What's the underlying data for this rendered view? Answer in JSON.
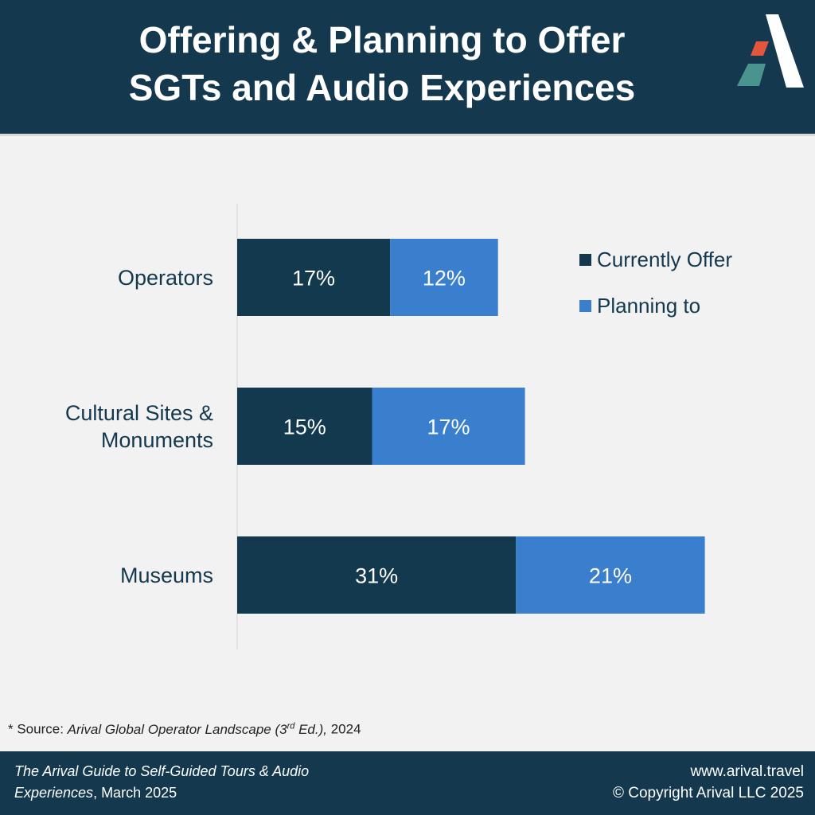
{
  "header": {
    "title_line1": "Offering & Planning to Offer",
    "title_line2": "SGTs and Audio Experiences",
    "logo_icon": "arival-logo-icon"
  },
  "colors": {
    "header_bg": "#14394f",
    "current": "#13394f",
    "planning": "#3a7fcd"
  },
  "chart_data": {
    "type": "bar",
    "orientation": "horizontal",
    "stacked": true,
    "categories": [
      "Operators",
      "Cultural Sites & Monuments",
      "Museums"
    ],
    "category_lines": [
      [
        "Operators"
      ],
      [
        "Cultural Sites &",
        "Monuments"
      ],
      [
        "Museums"
      ]
    ],
    "series": [
      {
        "name": "Currently Offer",
        "values": [
          17,
          15,
          31
        ],
        "labels": [
          "17%",
          "15%",
          "31%"
        ],
        "color": "#13394f"
      },
      {
        "name": "Planning to",
        "values": [
          12,
          17,
          21
        ],
        "labels": [
          "12%",
          "17%",
          "21%"
        ],
        "color": "#3a7fcd"
      }
    ],
    "unit": "%",
    "xlim": [
      0,
      60
    ],
    "grid": false,
    "legend_position": "right"
  },
  "source": {
    "prefix": "* Source: ",
    "title": "Arival Global Operator Landscape (3",
    "superscript": "rd",
    "title_end": " Ed.),",
    "year": " 2024"
  },
  "footer": {
    "left_italic": "The Arival Guide to Self-Guided Tours & Audio Experiences",
    "left_rest": ", March 2025",
    "website": "www.arival.travel",
    "copyright": "© Copyright Arival LLC 2025"
  }
}
